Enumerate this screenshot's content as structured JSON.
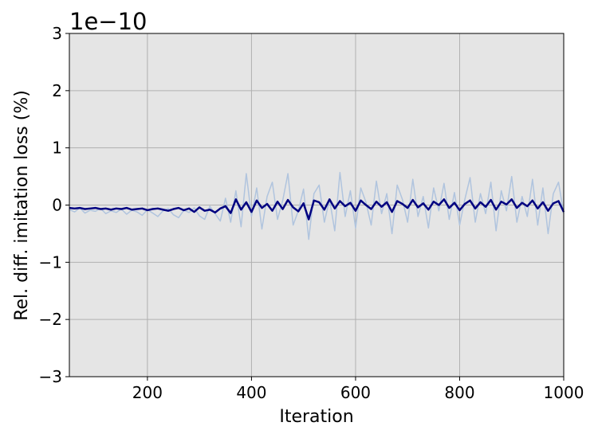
{
  "chart_data": {
    "type": "line",
    "x_label": "Iteration",
    "y_label": "Rel. diff. imitation loss (%)",
    "y_offset_label": "1e−10",
    "xlim": [
      50,
      1000
    ],
    "ylim": [
      -3,
      3
    ],
    "xticks": [
      200,
      400,
      600,
      800,
      1000
    ],
    "yticks": [
      {
        "value": -3,
        "label": "−3"
      },
      {
        "value": -2,
        "label": "−2"
      },
      {
        "value": -1,
        "label": "−1"
      },
      0,
      1,
      2,
      3
    ],
    "grid": true,
    "background": "#e5e5e5",
    "x": [
      50,
      60,
      70,
      80,
      90,
      100,
      110,
      120,
      130,
      140,
      150,
      160,
      170,
      180,
      190,
      200,
      210,
      220,
      230,
      240,
      250,
      260,
      270,
      280,
      290,
      300,
      310,
      320,
      330,
      340,
      350,
      360,
      370,
      380,
      390,
      400,
      410,
      420,
      430,
      440,
      450,
      460,
      470,
      480,
      490,
      500,
      510,
      520,
      530,
      540,
      550,
      560,
      570,
      580,
      590,
      600,
      610,
      620,
      630,
      640,
      650,
      660,
      670,
      680,
      690,
      700,
      710,
      720,
      730,
      740,
      750,
      760,
      770,
      780,
      790,
      800,
      810,
      820,
      830,
      840,
      850,
      860,
      870,
      880,
      890,
      900,
      910,
      920,
      930,
      940,
      950,
      960,
      970,
      980,
      990,
      1000
    ],
    "series": [
      {
        "color": "#b0c4de",
        "width": 1.5,
        "values": [
          -0.08,
          -0.12,
          -0.05,
          -0.14,
          -0.09,
          -0.11,
          -0.06,
          -0.15,
          -0.1,
          -0.13,
          -0.07,
          -0.16,
          -0.09,
          -0.12,
          -0.18,
          -0.08,
          -0.14,
          -0.2,
          -0.1,
          -0.06,
          -0.17,
          -0.22,
          -0.09,
          -0.13,
          -0.05,
          -0.19,
          -0.25,
          -0.02,
          -0.15,
          -0.28,
          0.12,
          -0.3,
          0.25,
          -0.38,
          0.55,
          -0.2,
          0.3,
          -0.42,
          0.15,
          0.4,
          -0.25,
          0.08,
          0.55,
          -0.35,
          -0.1,
          0.28,
          -0.6,
          0.2,
          0.35,
          -0.3,
          0.1,
          -0.45,
          0.57,
          -0.2,
          0.25,
          -0.4,
          0.3,
          0.05,
          -0.35,
          0.42,
          -0.15,
          0.2,
          -0.5,
          0.35,
          0.1,
          -0.3,
          0.45,
          -0.2,
          0.15,
          -0.4,
          0.3,
          -0.1,
          0.38,
          -0.25,
          0.22,
          -0.35,
          0.1,
          0.48,
          -0.3,
          0.2,
          -0.15,
          0.4,
          -0.45,
          0.25,
          -0.1,
          0.5,
          -0.3,
          0.15,
          -0.2,
          0.45,
          -0.35,
          0.3,
          -0.5,
          0.2,
          0.4,
          -0.15
        ]
      },
      {
        "color": "#000080",
        "width": 2.5,
        "values": [
          -0.05,
          -0.06,
          -0.05,
          -0.07,
          -0.06,
          -0.05,
          -0.07,
          -0.06,
          -0.08,
          -0.06,
          -0.07,
          -0.05,
          -0.08,
          -0.07,
          -0.06,
          -0.09,
          -0.07,
          -0.06,
          -0.08,
          -0.1,
          -0.07,
          -0.05,
          -0.09,
          -0.06,
          -0.12,
          -0.04,
          -0.1,
          -0.08,
          -0.13,
          -0.06,
          -0.02,
          -0.14,
          0.1,
          -0.08,
          0.05,
          -0.12,
          0.08,
          -0.05,
          0.02,
          -0.1,
          0.06,
          -0.07,
          0.09,
          -0.04,
          -0.11,
          0.03,
          -0.25,
          0.08,
          0.05,
          -0.08,
          0.1,
          -0.06,
          0.07,
          -0.02,
          0.04,
          -0.1,
          0.08,
          0.0,
          -0.07,
          0.06,
          -0.03,
          0.05,
          -0.12,
          0.07,
          0.02,
          -0.05,
          0.09,
          -0.04,
          0.03,
          -0.08,
          0.06,
          0.0,
          0.1,
          -0.05,
          0.04,
          -0.09,
          0.02,
          0.08,
          -0.06,
          0.05,
          -0.03,
          0.09,
          -0.08,
          0.06,
          0.01,
          0.1,
          -0.05,
          0.04,
          -0.02,
          0.08,
          -0.06,
          0.05,
          -0.1,
          0.03,
          0.07,
          -0.12
        ]
      }
    ]
  }
}
